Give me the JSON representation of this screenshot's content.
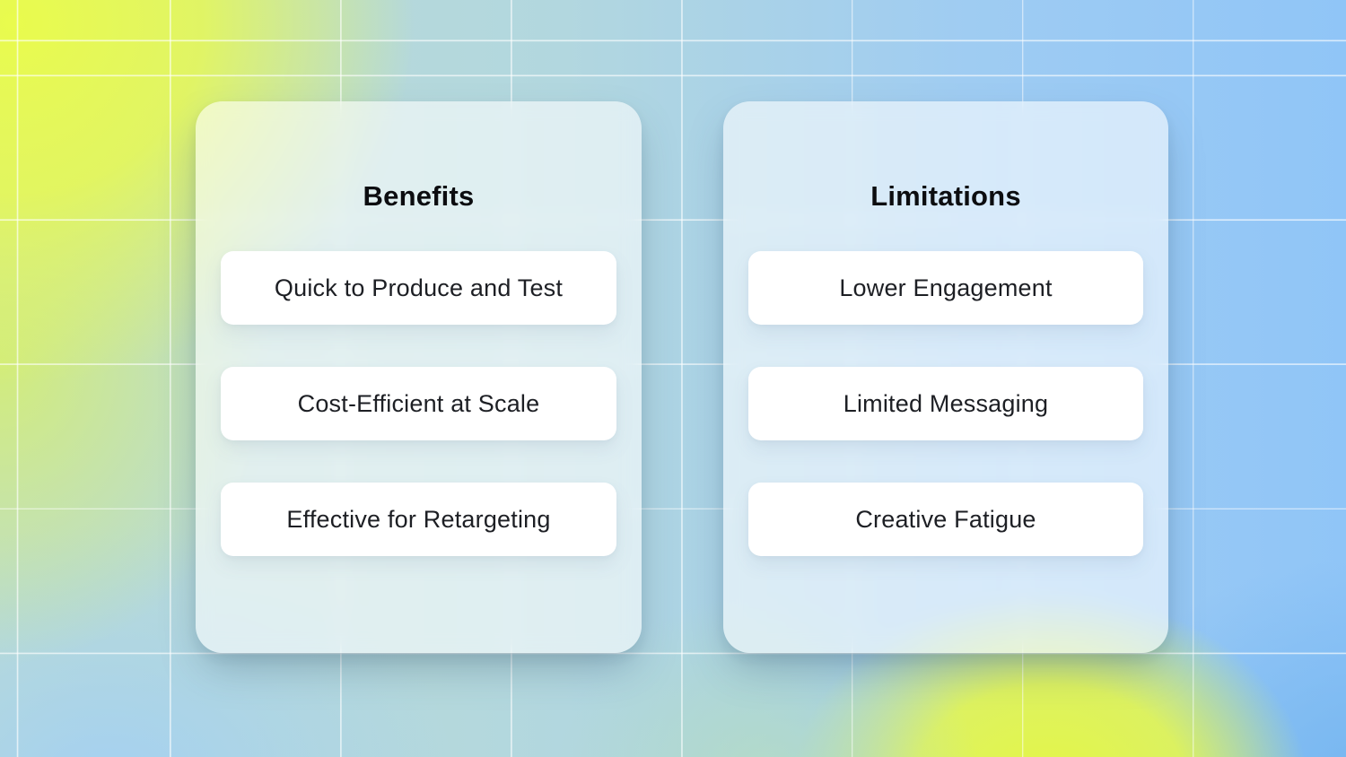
{
  "colors": {
    "lime": "#e9fb4d",
    "bottom_lime": "#e4f646",
    "teal": "#bcdcd2",
    "blue": "#90c5f7",
    "row_bg": "#ffffff",
    "text": "#1d1f24"
  },
  "cards": [
    {
      "title": "Benefits",
      "items": [
        "Quick to Produce and Test",
        "Cost-Efficient at Scale",
        "Effective for Retargeting"
      ]
    },
    {
      "title": "Limitations",
      "items": [
        "Lower Engagement",
        "Limited Messaging",
        "Creative Fatigue"
      ]
    }
  ]
}
